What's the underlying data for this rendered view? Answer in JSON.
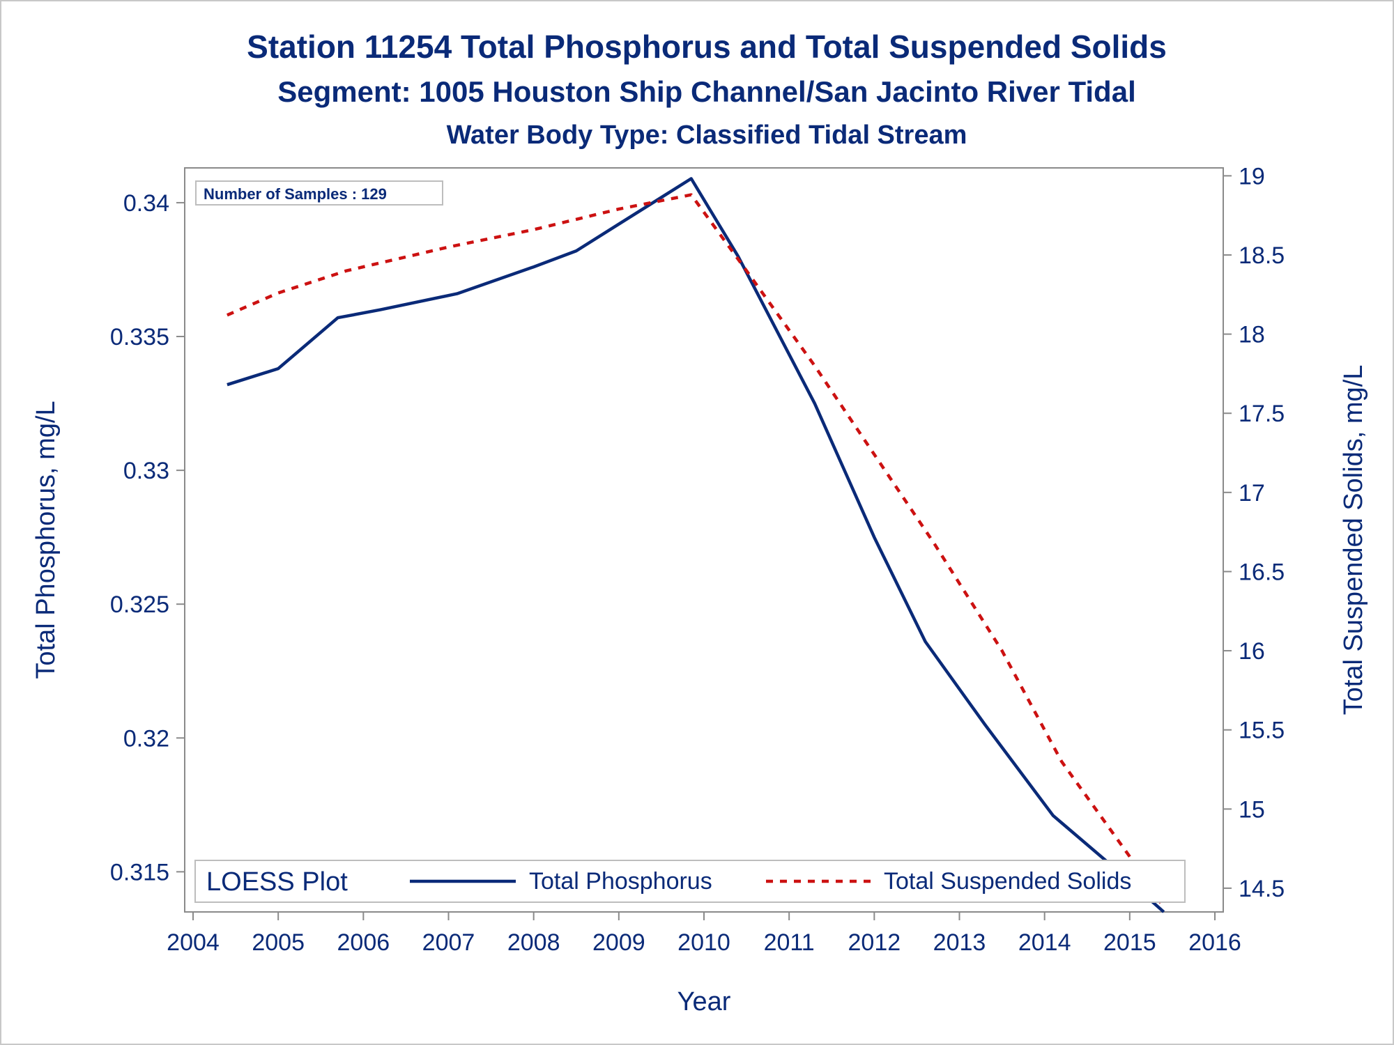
{
  "titles": {
    "line1": "Station 11254  Total Phosphorus and Total Suspended Solids",
    "line2": "Segment: 1005  Houston Ship Channel/San Jacinto River Tidal",
    "line3": "Water Body Type: Classified Tidal Stream"
  },
  "samples_label": "Number of Samples : 129",
  "legend": {
    "title": "LOESS Plot",
    "entries": [
      "Total Phosphorus",
      "Total Suspended Solids"
    ]
  },
  "chart_data": {
    "type": "line",
    "title": "Station 11254  Total Phosphorus and Total Suspended Solids",
    "xlabel": "Year",
    "ylabel_left": "Total Phosphorus, mg/L",
    "ylabel_right": "Total Suspended Solids, mg/L",
    "xlim": [
      2004,
      2016
    ],
    "ylim_left": [
      0.3135,
      0.3413
    ],
    "ylim_right": [
      14.35,
      19.05
    ],
    "x_ticks": [
      "2004",
      "2005",
      "2006",
      "2007",
      "2008",
      "2009",
      "2010",
      "2011",
      "2012",
      "2013",
      "2014",
      "2015",
      "2016"
    ],
    "y_left_ticks": [
      "0.315",
      "0.32",
      "0.325",
      "0.33",
      "0.335",
      "0.34"
    ],
    "y_right_ticks": [
      "14.5",
      "15",
      "15.5",
      "16",
      "16.5",
      "17",
      "17.5",
      "18",
      "18.5",
      "19"
    ],
    "legend_placement": "bottom-inside",
    "grid": false,
    "colors": {
      "phosphorus": "#0a2a78",
      "tss": "#cc1111"
    },
    "series": [
      {
        "name": "Total Phosphorus",
        "axis": "left",
        "style": "solid",
        "x": [
          2004.4,
          2005.0,
          2005.7,
          2006.2,
          2007.1,
          2008.0,
          2008.5,
          2009.0,
          2009.5,
          2009.85,
          2010.4,
          2011.3,
          2012.0,
          2012.6,
          2013.3,
          2014.1,
          2014.8,
          2015.4
        ],
        "y": [
          0.3332,
          0.3338,
          0.3357,
          0.336,
          0.3366,
          0.3376,
          0.3382,
          0.3392,
          0.3402,
          0.3409,
          0.338,
          0.3325,
          0.3275,
          0.3236,
          0.3205,
          0.3171,
          0.3152,
          0.3135
        ]
      },
      {
        "name": "Total Suspended Solids",
        "axis": "right",
        "style": "dashed",
        "x": [
          2004.4,
          2005.0,
          2005.8,
          2007.0,
          2008.0,
          2009.0,
          2009.85,
          2010.5,
          2011.3,
          2012.0,
          2012.7,
          2013.5,
          2014.2,
          2015.0,
          2015.4
        ],
        "y": [
          18.12,
          18.26,
          18.4,
          18.55,
          18.66,
          18.79,
          18.88,
          18.4,
          17.8,
          17.24,
          16.68,
          16.0,
          15.3,
          14.7,
          14.38
        ]
      }
    ]
  }
}
